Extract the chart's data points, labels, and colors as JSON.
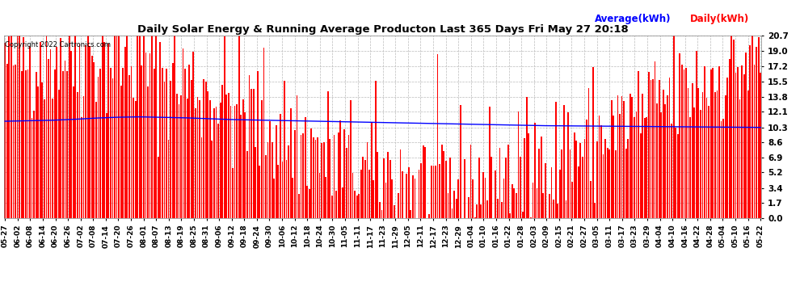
{
  "title": "Daily Solar Energy & Running Average Producton Last 365 Days Fri May 27 20:18",
  "copyright": "Copyright 2022 Cartronics.com",
  "legend_avg": "Average(kWh)",
  "legend_daily": "Daily(kWh)",
  "yticks": [
    0.0,
    1.7,
    3.4,
    5.2,
    6.9,
    8.6,
    10.3,
    12.1,
    13.8,
    15.5,
    17.2,
    19.0,
    20.7
  ],
  "ymax": 20.7,
  "bar_color": "#ff0000",
  "avg_line_color": "#0000ff",
  "background_color": "#ffffff",
  "grid_color": "#bbbbbb",
  "title_color": "#000000",
  "avg_label_color": "#0000ff",
  "daily_label_color": "#ff0000",
  "x_labels": [
    "05-27",
    "06-02",
    "06-08",
    "06-14",
    "06-20",
    "06-26",
    "07-02",
    "07-08",
    "07-14",
    "07-20",
    "07-26",
    "08-01",
    "08-07",
    "08-13",
    "08-19",
    "08-25",
    "08-31",
    "09-06",
    "09-12",
    "09-18",
    "09-24",
    "09-30",
    "10-06",
    "10-12",
    "10-18",
    "10-24",
    "10-30",
    "11-05",
    "11-11",
    "11-17",
    "11-23",
    "11-29",
    "12-05",
    "12-11",
    "12-17",
    "12-23",
    "12-29",
    "01-04",
    "01-10",
    "01-16",
    "01-22",
    "01-28",
    "02-03",
    "02-09",
    "02-15",
    "02-21",
    "02-27",
    "03-05",
    "03-11",
    "03-17",
    "03-23",
    "03-29",
    "04-04",
    "04-10",
    "04-16",
    "04-22",
    "04-28",
    "05-04",
    "05-10",
    "05-16",
    "05-22"
  ],
  "n_days": 366,
  "seed": 42,
  "avg_line_points": [
    11.0,
    11.05,
    11.1,
    11.2,
    11.35,
    11.45,
    11.5,
    11.45,
    11.4,
    11.3,
    11.2,
    11.15,
    11.1,
    11.05,
    11.0,
    10.95,
    10.9,
    10.85,
    10.8,
    10.75,
    10.7,
    10.65,
    10.6,
    10.55,
    10.5,
    10.48,
    10.46,
    10.44,
    10.42,
    10.4,
    10.38,
    10.36,
    10.34,
    10.32,
    10.3
  ]
}
